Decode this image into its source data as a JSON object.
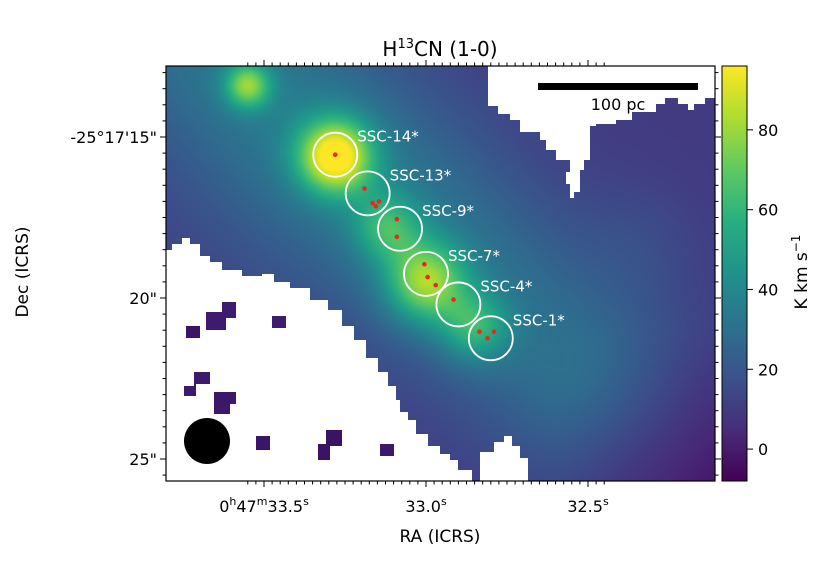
{
  "chart_data": {
    "type": "heatmap",
    "title_main": "H",
    "title_sup": "13",
    "title_rest": "CN (1-0)",
    "xlabel": "RA (ICRS)",
    "ylabel": "Dec (ICRS)",
    "colorbar_label_main": "K km s",
    "colorbar_label_sup": "−1",
    "colormap": "viridis",
    "colorbar_range": [
      -8,
      96
    ],
    "colorbar_ticks": [
      {
        "label": "0",
        "value": 0
      },
      {
        "label": "20",
        "value": 20
      },
      {
        "label": "40",
        "value": 40
      },
      {
        "label": "60",
        "value": 60
      },
      {
        "label": "80",
        "value": 80
      }
    ],
    "x_ticks": [
      {
        "pre": "0",
        "s1": "h",
        "mid": "47",
        "s2": "m",
        "post": "33.5",
        "s3": "s",
        "ra_sec": 33.5
      },
      {
        "pre": "",
        "s1": "",
        "mid": "",
        "s2": "",
        "post": "33.0",
        "s3": "s",
        "ra_sec": 33.0
      },
      {
        "pre": "",
        "s1": "",
        "mid": "",
        "s2": "",
        "post": "32.5",
        "s3": "s",
        "ra_sec": 32.5
      }
    ],
    "y_ticks": [
      {
        "label": "-25°17'15\"",
        "dec_arcsec": 15
      },
      {
        "label": "20\"",
        "dec_arcsec": 20
      },
      {
        "label": "25\"",
        "dec_arcsec": 25
      }
    ],
    "scale_bar_label": "100 pc",
    "sources": [
      {
        "name": "SSC-14*",
        "ra_sec": 33.28,
        "dec_arcsec": 15.55
      },
      {
        "name": "SSC-13*",
        "ra_sec": 33.18,
        "dec_arcsec": 16.75
      },
      {
        "name": "SSC-9*",
        "ra_sec": 33.08,
        "dec_arcsec": 17.85
      },
      {
        "name": "SSC-7*",
        "ra_sec": 33.0,
        "dec_arcsec": 19.25
      },
      {
        "name": "SSC-4*",
        "ra_sec": 32.9,
        "dec_arcsec": 20.2
      },
      {
        "name": "SSC-1*",
        "ra_sec": 32.8,
        "dec_arcsec": 21.25
      }
    ],
    "markers": [
      {
        "ra_sec": 33.28,
        "dec_arcsec": 15.55
      },
      {
        "ra_sec": 33.19,
        "dec_arcsec": 16.6
      },
      {
        "ra_sec": 33.165,
        "dec_arcsec": 17.05
      },
      {
        "ra_sec": 33.155,
        "dec_arcsec": 17.15
      },
      {
        "ra_sec": 33.145,
        "dec_arcsec": 17.0
      },
      {
        "ra_sec": 33.09,
        "dec_arcsec": 17.55
      },
      {
        "ra_sec": 33.09,
        "dec_arcsec": 18.1
      },
      {
        "ra_sec": 33.005,
        "dec_arcsec": 18.95
      },
      {
        "ra_sec": 32.995,
        "dec_arcsec": 19.35
      },
      {
        "ra_sec": 32.97,
        "dec_arcsec": 19.6
      },
      {
        "ra_sec": 32.915,
        "dec_arcsec": 20.05
      },
      {
        "ra_sec": 32.835,
        "dec_arcsec": 21.05
      },
      {
        "ra_sec": 32.81,
        "dec_arcsec": 21.25
      },
      {
        "ra_sec": 32.79,
        "dec_arcsec": 21.05
      }
    ],
    "emission_peaks": [
      {
        "ra_sec": 33.28,
        "dec_arcsec": 15.6,
        "value": 80
      },
      {
        "ra_sec": 33.55,
        "dec_arcsec": 13.4,
        "value": 55
      },
      {
        "ra_sec": 33.0,
        "dec_arcsec": 19.5,
        "value": 60
      },
      {
        "ra_sec": 32.85,
        "dec_arcsec": 20.9,
        "value": 40
      },
      {
        "ra_sec": 33.12,
        "dec_arcsec": 17.8,
        "value": 38
      }
    ],
    "colors": {
      "source_circle": "#ffffff",
      "marker": "#e8291c",
      "blank": "#ffffff",
      "beam": "#000000",
      "scale_bar": "#000000"
    }
  }
}
